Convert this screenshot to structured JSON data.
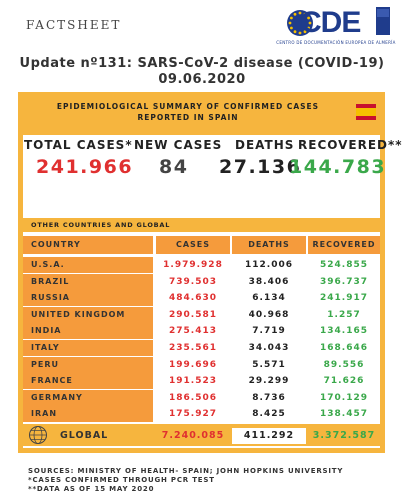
{
  "header": {
    "factsheet": "FACTSHEET",
    "logo_text": "CDE",
    "logo_sub": "CENTRO DE DOCUMENTACIÓN EUROPEA DE ALMERÍA",
    "title_line1": "Update nº131: SARS-CoV-2 disease (COVID-19)",
    "title_line2": "09.06.2020"
  },
  "spain": {
    "banner_line1": "EPIDEMIOLOGICAL SUMMARY OF CONFIRMED CASES",
    "banner_line2": "REPORTED IN SPAIN",
    "total_label": "TOTAL CASES*",
    "new_label": "NEW CASES",
    "deaths_label": "DEATHS",
    "recovered_label": "RECOVERED**",
    "total_value": "241.966",
    "new_value": "84",
    "deaths_value": "27.136",
    "recovered_value": "144.783"
  },
  "global_section": {
    "title": "OTHER COUNTRIES AND GLOBAL",
    "headers": {
      "country": "COUNTRY",
      "cases": "CASES",
      "deaths": "DEATHS",
      "recovered": "RECOVERED"
    },
    "rows": [
      {
        "country": "U.S.A.",
        "cases": "1.979.928",
        "deaths": "112.006",
        "recovered": "524.855"
      },
      {
        "country": "BRAZIL",
        "cases": "739.503",
        "deaths": "38.406",
        "recovered": "396.737"
      },
      {
        "country": "RUSSIA",
        "cases": "484.630",
        "deaths": "6.134",
        "recovered": "241.917"
      },
      {
        "country": "UNITED KINGDOM",
        "cases": "290.581",
        "deaths": "40.968",
        "recovered": "1.257"
      },
      {
        "country": "INDIA",
        "cases": "275.413",
        "deaths": "7.719",
        "recovered": "134.165"
      },
      {
        "country": "ITALY",
        "cases": "235.561",
        "deaths": "34.043",
        "recovered": "168.646"
      },
      {
        "country": "PERU",
        "cases": "199.696",
        "deaths": "5.571",
        "recovered": "89.556"
      },
      {
        "country": "FRANCE",
        "cases": "191.523",
        "deaths": "29.299",
        "recovered": "71.626"
      },
      {
        "country": "GERMANY",
        "cases": "186.506",
        "deaths": "8.736",
        "recovered": "170.129"
      },
      {
        "country": "IRAN",
        "cases": "175.927",
        "deaths": "8.425",
        "recovered": "138.457"
      }
    ],
    "global": {
      "label": "GLOBAL",
      "cases": "7.240.085",
      "deaths": "411.292",
      "recovered": "3.372.587"
    }
  },
  "footer": {
    "line1": "SOURCES: MINISTRY OF HEALTH- SPAIN; JOHN HOPKINS UNIVERSITY",
    "line2": "*CASES CONFIRMED THROUGH PCR TEST",
    "line3": "**DATA AS OF 15 MAY 2020"
  },
  "colors": {
    "orange": "#f59b3c",
    "yellow": "#f6b53e",
    "red": "#e03030",
    "green": "#3aa84a",
    "blue": "#1f3c8c"
  }
}
